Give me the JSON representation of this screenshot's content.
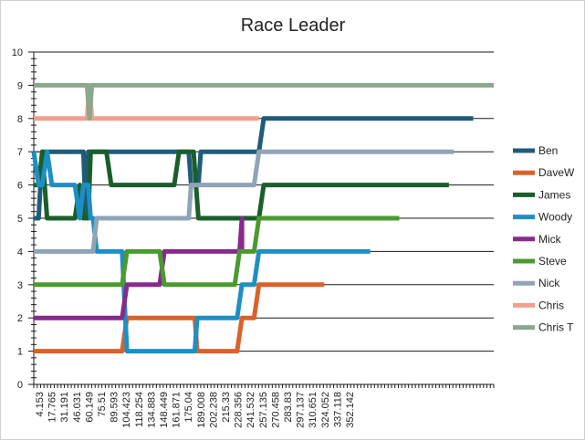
{
  "chart_data": {
    "type": "line",
    "title": "Race Leader",
    "xlabel": "",
    "ylabel": "",
    "ylim": [
      0,
      10
    ],
    "yticks": [
      0,
      1,
      2,
      3,
      4,
      5,
      6,
      7,
      8,
      9,
      10
    ],
    "xlim": [
      0,
      380
    ],
    "x_tick_labels": [
      "4.153",
      "17.765",
      "31.191",
      "46.031",
      "60.149",
      "75.51",
      "89.593",
      "104.423",
      "118.254",
      "134.883",
      "148.449",
      "161.871",
      "175.04",
      "189.008",
      "202.238",
      "215.33",
      "228.356",
      "241.532",
      "257.135",
      "270.458",
      "283.83",
      "297.137",
      "310.651",
      "324.052",
      "337.118",
      "352.142"
    ],
    "grid": "horizontal",
    "legend_position": "right",
    "series": [
      {
        "name": "Ben",
        "color": "#1f5c7a",
        "points": [
          [
            0,
            5
          ],
          [
            4,
            5
          ],
          [
            7,
            7
          ],
          [
            41,
            7
          ],
          [
            43,
            5
          ],
          [
            45,
            7
          ],
          [
            128,
            7
          ],
          [
            130,
            6
          ],
          [
            136,
            6
          ],
          [
            138,
            7
          ],
          [
            186,
            7
          ],
          [
            190,
            8
          ],
          [
            363,
            8
          ]
        ]
      },
      {
        "name": "DaveW",
        "color": "#d9622b",
        "points": [
          [
            0,
            1
          ],
          [
            73,
            1
          ],
          [
            77,
            2
          ],
          [
            133,
            2
          ],
          [
            135,
            1
          ],
          [
            168,
            1
          ],
          [
            172,
            2
          ],
          [
            182,
            2
          ],
          [
            186,
            3
          ],
          [
            240,
            3
          ]
        ]
      },
      {
        "name": "James",
        "color": "#1a5e2a",
        "points": [
          [
            0,
            6
          ],
          [
            4,
            6
          ],
          [
            7,
            7
          ],
          [
            11,
            5
          ],
          [
            34,
            5
          ],
          [
            38,
            6
          ],
          [
            41,
            5
          ],
          [
            45,
            5
          ],
          [
            47,
            7
          ],
          [
            60,
            7
          ],
          [
            64,
            6
          ],
          [
            116,
            6
          ],
          [
            120,
            7
          ],
          [
            132,
            7
          ],
          [
            136,
            5
          ],
          [
            186,
            5
          ],
          [
            190,
            6
          ],
          [
            343,
            6
          ]
        ]
      },
      {
        "name": "Woody",
        "color": "#1e8fc4",
        "points": [
          [
            0,
            7
          ],
          [
            4,
            6
          ],
          [
            7,
            6
          ],
          [
            11,
            7
          ],
          [
            15,
            6
          ],
          [
            34,
            6
          ],
          [
            38,
            5
          ],
          [
            41,
            6
          ],
          [
            45,
            6
          ],
          [
            47,
            5
          ],
          [
            49,
            5
          ],
          [
            52,
            4
          ],
          [
            73,
            4
          ],
          [
            77,
            1
          ],
          [
            133,
            1
          ],
          [
            135,
            2
          ],
          [
            168,
            2
          ],
          [
            172,
            3
          ],
          [
            182,
            3
          ],
          [
            186,
            4
          ],
          [
            278,
            4
          ]
        ]
      },
      {
        "name": "Mick",
        "color": "#872a8c",
        "points": [
          [
            0,
            2
          ],
          [
            73,
            2
          ],
          [
            77,
            3
          ],
          [
            104,
            3
          ],
          [
            108,
            4
          ],
          [
            166,
            4
          ],
          [
            170,
            4
          ],
          [
            172,
            5
          ],
          [
            172,
            4
          ]
        ]
      },
      {
        "name": "Steve",
        "color": "#4a9a2f",
        "points": [
          [
            0,
            3
          ],
          [
            73,
            3
          ],
          [
            77,
            4
          ],
          [
            104,
            4
          ],
          [
            108,
            3
          ],
          [
            166,
            3
          ],
          [
            170,
            4
          ],
          [
            182,
            4
          ],
          [
            186,
            5
          ],
          [
            302,
            5
          ]
        ]
      },
      {
        "name": "Nick",
        "color": "#8fa4b8",
        "points": [
          [
            0,
            4
          ],
          [
            49,
            4
          ],
          [
            52,
            5
          ],
          [
            128,
            5
          ],
          [
            130,
            6
          ],
          [
            182,
            6
          ],
          [
            186,
            7
          ],
          [
            347,
            7
          ]
        ]
      },
      {
        "name": "Chris",
        "color": "#f0a08c",
        "points": [
          [
            0,
            8
          ],
          [
            44,
            8
          ],
          [
            46,
            9
          ],
          [
            48,
            8
          ],
          [
            186,
            8
          ]
        ]
      },
      {
        "name": "Chris T",
        "color": "#8aa88c",
        "points": [
          [
            0,
            9
          ],
          [
            44,
            9
          ],
          [
            46,
            8
          ],
          [
            48,
            9
          ],
          [
            380,
            9
          ]
        ]
      }
    ]
  }
}
